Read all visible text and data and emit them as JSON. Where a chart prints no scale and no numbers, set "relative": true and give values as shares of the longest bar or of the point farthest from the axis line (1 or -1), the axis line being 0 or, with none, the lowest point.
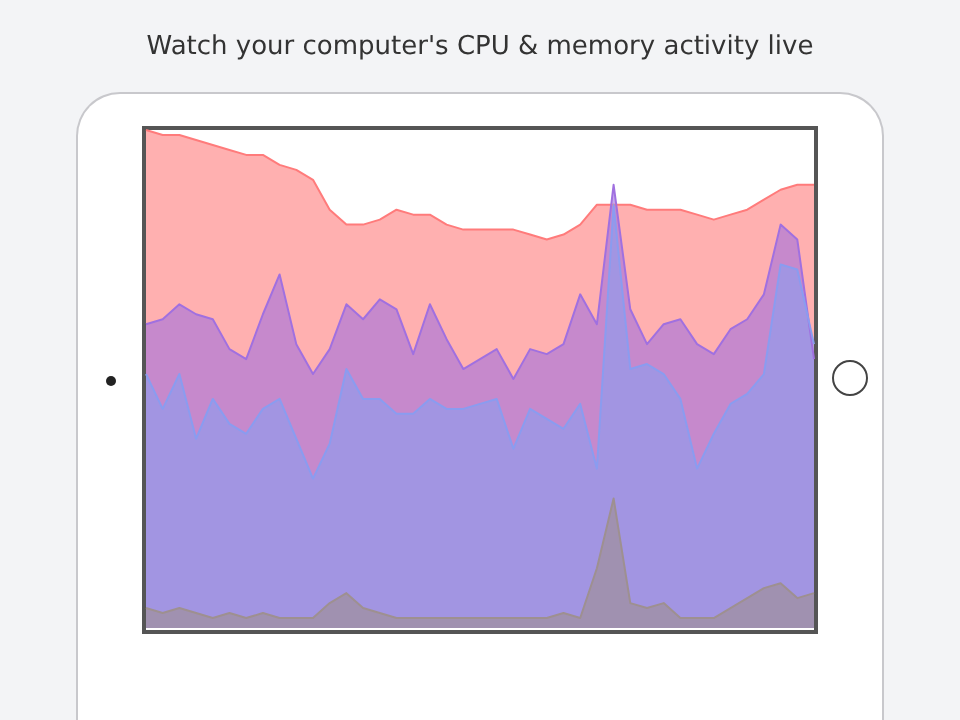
{
  "chart_data": {
    "type": "area",
    "title": "Watch your computer's CPU & memory activity live",
    "relative": true,
    "categories": [
      null,
      null,
      null,
      null,
      null,
      null,
      null,
      null,
      null,
      null,
      null,
      null,
      null,
      null,
      null,
      null,
      null,
      null,
      null,
      null,
      null,
      null,
      null,
      null,
      null,
      null,
      null,
      null,
      null,
      null,
      null,
      null,
      null,
      null,
      null,
      null,
      null,
      null,
      null,
      null,
      null
    ],
    "series": [
      {
        "color": "#ff7b7b",
        "values": [
          1.0,
          0.99,
          0.99,
          0.98,
          0.97,
          0.96,
          0.95,
          0.95,
          0.93,
          0.92,
          0.9,
          0.84,
          0.81,
          0.81,
          0.82,
          0.84,
          0.83,
          0.83,
          0.81,
          0.8,
          0.8,
          0.8,
          0.8,
          0.79,
          0.78,
          0.79,
          0.81,
          0.85,
          0.85,
          0.85,
          0.84,
          0.84,
          0.84,
          0.83,
          0.82,
          0.83,
          0.84,
          0.86,
          0.88,
          0.89,
          0.89
        ]
      },
      {
        "color": "#a070e0",
        "values": [
          0.61,
          0.62,
          0.65,
          0.63,
          0.62,
          0.56,
          0.54,
          0.63,
          0.71,
          0.57,
          0.51,
          0.56,
          0.65,
          0.62,
          0.66,
          0.64,
          0.55,
          0.65,
          0.58,
          0.52,
          0.54,
          0.56,
          0.5,
          0.56,
          0.55,
          0.57,
          0.67,
          0.61,
          0.89,
          0.64,
          0.57,
          0.61,
          0.62,
          0.57,
          0.55,
          0.6,
          0.62,
          0.67,
          0.81,
          0.78,
          0.54
        ]
      },
      {
        "color": "#8a9cf0",
        "values": [
          0.51,
          0.44,
          0.51,
          0.38,
          0.46,
          0.41,
          0.39,
          0.44,
          0.46,
          0.38,
          0.3,
          0.37,
          0.52,
          0.46,
          0.46,
          0.43,
          0.43,
          0.46,
          0.44,
          0.44,
          0.45,
          0.46,
          0.36,
          0.44,
          0.42,
          0.4,
          0.45,
          0.32,
          0.85,
          0.52,
          0.53,
          0.51,
          0.46,
          0.32,
          0.39,
          0.45,
          0.47,
          0.51,
          0.73,
          0.72,
          0.57
        ]
      },
      {
        "color": "#9e9090",
        "values": [
          0.04,
          0.03,
          0.04,
          0.03,
          0.02,
          0.03,
          0.02,
          0.03,
          0.02,
          0.02,
          0.02,
          0.05,
          0.07,
          0.04,
          0.03,
          0.02,
          0.02,
          0.02,
          0.02,
          0.02,
          0.02,
          0.02,
          0.02,
          0.02,
          0.02,
          0.03,
          0.02,
          0.12,
          0.26,
          0.05,
          0.04,
          0.05,
          0.02,
          0.02,
          0.02,
          0.04,
          0.06,
          0.08,
          0.09,
          0.06,
          0.07
        ]
      }
    ]
  }
}
